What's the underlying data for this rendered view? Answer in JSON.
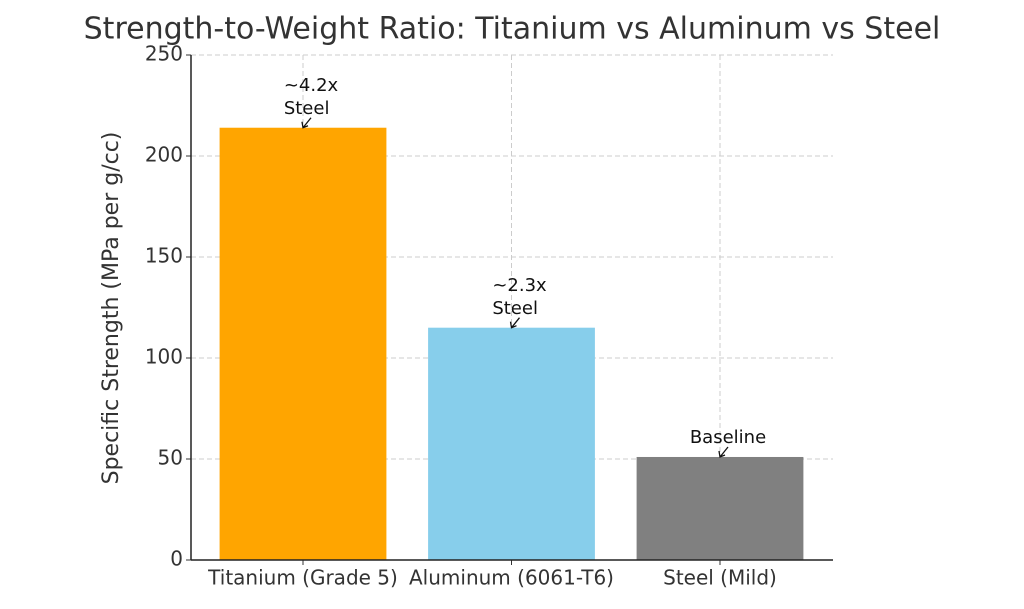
{
  "chart_data": {
    "type": "bar",
    "title": "Strength-to-Weight Ratio: Titanium vs Aluminum vs Steel",
    "y_label": "Specific Strength (MPa per g/cc)",
    "categories": [
      "Titanium (Grade 5)",
      "Aluminum (6061-T6)",
      "Steel (Mild)"
    ],
    "values": [
      214,
      115,
      51
    ],
    "colors": [
      "#FFA500",
      "#87CEEB",
      "#808080"
    ],
    "value_annotations": [
      "~4.2x\nSteel",
      "~2.3x\nSteel",
      "Baseline"
    ],
    "ylim": [
      0,
      250
    ],
    "yticks": [
      0,
      50,
      100,
      150,
      200,
      250
    ],
    "grid": true
  }
}
